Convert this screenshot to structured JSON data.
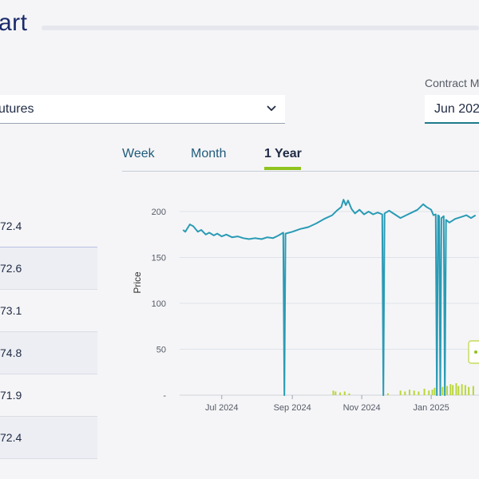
{
  "header": {
    "title_fragment": "art"
  },
  "contract": {
    "label": "Contract M",
    "value": "Jun 202"
  },
  "product_select": {
    "value": "utures"
  },
  "tabs": [
    {
      "label": "Week",
      "active": false
    },
    {
      "label": "Month",
      "active": false
    },
    {
      "label": "1 Year",
      "active": true
    }
  ],
  "price_list": [
    "72.4",
    "72.6",
    "73.1",
    "74.8",
    "71.9",
    "72.4"
  ],
  "colors": {
    "price_line": "#2a9bb5",
    "volume_bar": "#b9d63a",
    "accent": "#8fc31f",
    "title": "#1a2b6b"
  },
  "chart_data": {
    "type": "line",
    "ylabel": "Price",
    "ylim": [
      0,
      200
    ],
    "yticks": [
      {
        "v": 0,
        "label": "-"
      },
      {
        "v": 50,
        "label": "50"
      },
      {
        "v": 100,
        "label": "100"
      },
      {
        "v": 150,
        "label": "150"
      },
      {
        "v": 200,
        "label": "200"
      }
    ],
    "xticks": [
      {
        "date": "2024-07-01",
        "label": "Jul 2024"
      },
      {
        "date": "2024-09-01",
        "label": "Sep 2024"
      },
      {
        "date": "2024-11-01",
        "label": "Nov 2024"
      },
      {
        "date": "2025-01-01",
        "label": "Jan 2025"
      }
    ],
    "series": [
      {
        "points": [
          [
            "2024-05-28",
            180
          ],
          [
            "2024-05-30",
            178
          ],
          [
            "2024-06-03",
            186
          ],
          [
            "2024-06-06",
            184
          ],
          [
            "2024-06-10",
            178
          ],
          [
            "2024-06-13",
            180
          ],
          [
            "2024-06-17",
            175
          ],
          [
            "2024-06-20",
            177
          ],
          [
            "2024-06-24",
            174
          ],
          [
            "2024-06-27",
            176
          ],
          [
            "2024-07-01",
            173
          ],
          [
            "2024-07-05",
            175
          ],
          [
            "2024-07-10",
            172
          ],
          [
            "2024-07-15",
            173
          ],
          [
            "2024-07-20",
            171
          ],
          [
            "2024-07-25",
            170
          ],
          [
            "2024-07-30",
            171
          ],
          [
            "2024-08-05",
            170
          ],
          [
            "2024-08-10",
            172
          ],
          [
            "2024-08-15",
            171
          ],
          [
            "2024-08-20",
            174
          ],
          [
            "2024-08-24",
            177
          ],
          [
            "2024-08-25",
            0
          ],
          [
            "2024-08-26",
            176
          ],
          [
            "2024-09-01",
            178
          ],
          [
            "2024-09-08",
            181
          ],
          [
            "2024-09-15",
            183
          ],
          [
            "2024-09-22",
            187
          ],
          [
            "2024-09-29",
            192
          ],
          [
            "2024-10-06",
            196
          ],
          [
            "2024-10-10",
            201
          ],
          [
            "2024-10-14",
            205
          ],
          [
            "2024-10-16",
            213
          ],
          [
            "2024-10-18",
            207
          ],
          [
            "2024-10-20",
            212
          ],
          [
            "2024-10-23",
            203
          ],
          [
            "2024-10-26",
            198
          ],
          [
            "2024-10-30",
            202
          ],
          [
            "2024-11-03",
            197
          ],
          [
            "2024-11-07",
            200
          ],
          [
            "2024-11-11",
            197
          ],
          [
            "2024-11-15",
            199
          ],
          [
            "2024-11-19",
            197
          ],
          [
            "2024-11-20",
            0
          ],
          [
            "2024-11-21",
            198
          ],
          [
            "2024-11-25",
            201
          ],
          [
            "2024-11-30",
            197
          ],
          [
            "2024-12-05",
            193
          ],
          [
            "2024-12-10",
            196
          ],
          [
            "2024-12-15",
            199
          ],
          [
            "2024-12-20",
            202
          ],
          [
            "2024-12-25",
            208
          ],
          [
            "2024-12-28",
            205
          ],
          [
            "2025-01-01",
            202
          ],
          [
            "2025-01-03",
            196
          ],
          [
            "2025-01-05",
            197
          ],
          [
            "2025-01-06",
            0
          ],
          [
            "2025-01-07",
            196
          ],
          [
            "2025-01-08",
            195
          ],
          [
            "2025-01-09",
            0
          ],
          [
            "2025-01-10",
            193
          ],
          [
            "2025-01-12",
            195
          ],
          [
            "2025-01-13",
            0
          ],
          [
            "2025-01-14",
            191
          ],
          [
            "2025-01-17",
            188
          ],
          [
            "2025-01-22",
            192
          ],
          [
            "2025-01-27",
            194
          ],
          [
            "2025-02-01",
            196
          ],
          [
            "2025-02-05",
            193
          ],
          [
            "2025-02-09",
            196
          ]
        ]
      }
    ],
    "volume_bars": [
      [
        "2024-10-07",
        5
      ],
      [
        "2024-10-09",
        4
      ],
      [
        "2024-10-13",
        3
      ],
      [
        "2024-10-17",
        4
      ],
      [
        "2024-10-21",
        2
      ],
      [
        "2024-11-24",
        2
      ],
      [
        "2024-12-05",
        5
      ],
      [
        "2024-12-09",
        4
      ],
      [
        "2024-12-13",
        6
      ],
      [
        "2024-12-17",
        5
      ],
      [
        "2024-12-21",
        4
      ],
      [
        "2024-12-26",
        7
      ],
      [
        "2024-12-30",
        5
      ],
      [
        "2025-01-02",
        6
      ],
      [
        "2025-01-04",
        8
      ],
      [
        "2025-01-11",
        9
      ],
      [
        "2025-01-15",
        10
      ],
      [
        "2025-01-18",
        12
      ],
      [
        "2025-01-20",
        11
      ],
      [
        "2025-01-23",
        13
      ],
      [
        "2025-01-25",
        10
      ],
      [
        "2025-01-28",
        12
      ],
      [
        "2025-01-31",
        11
      ],
      [
        "2025-02-03",
        9
      ],
      [
        "2025-02-07",
        10
      ]
    ]
  }
}
